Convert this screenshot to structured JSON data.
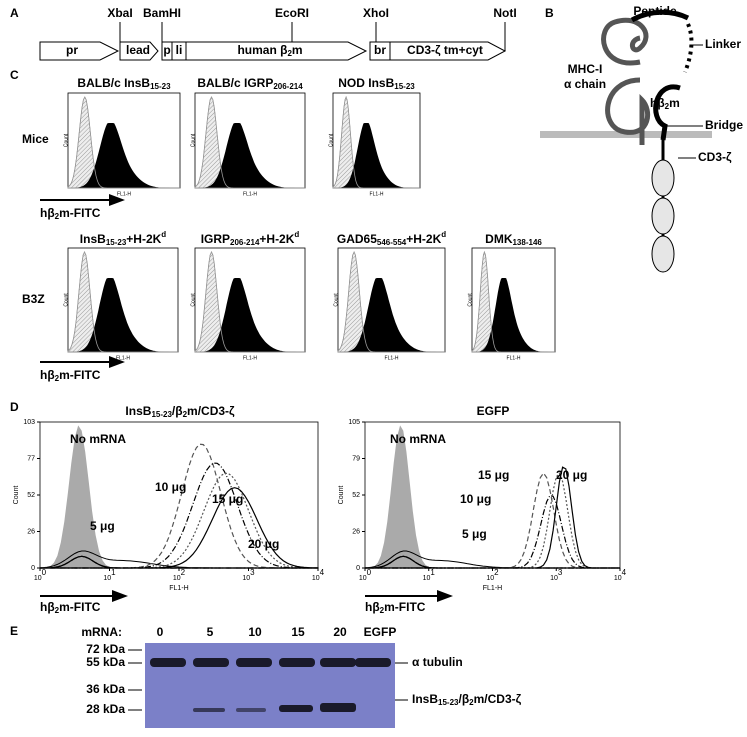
{
  "panel_a": {
    "letter": "A",
    "sites": [
      "XbaI",
      "BamHI",
      "EcoRI",
      "XhoI",
      "NotI"
    ],
    "boxes": {
      "pr": "pr",
      "lead": "lead",
      "p": "p",
      "li": "li",
      "b2m": [
        "human β",
        {
          "sub": "2"
        },
        "m"
      ],
      "br": "br",
      "cd3": "CD3-ζ tm+cyt"
    }
  },
  "panel_b": {
    "letter": "B",
    "peptide": "Peptide",
    "linker": "Linker",
    "mhc": [
      "MHC-I",
      "α chain"
    ],
    "b2m": [
      "hβ",
      {
        "sub": "2"
      },
      "m"
    ],
    "bridge": "Bridge",
    "cd3": "CD3-ζ"
  },
  "panel_c": {
    "letter": "C",
    "y_label": "Count",
    "x_label": "FL1-H",
    "rows": [
      {
        "label": "Mice",
        "x_axis": [
          "hβ",
          {
            "sub": "2"
          },
          "m-FITC"
        ],
        "plots": [
          [
            "BALB/c InsB",
            {
              "sub": "15-23"
            }
          ],
          [
            "BALB/c IGRP",
            {
              "sub": "206-214"
            }
          ],
          [
            "NOD InsB",
            {
              "sub": "15-23"
            }
          ]
        ]
      },
      {
        "label": "B3Z",
        "x_axis": [
          "hβ",
          {
            "sub": "2"
          },
          "m-FITC"
        ],
        "plots": [
          [
            "InsB",
            {
              "sub": "15-23"
            },
            "+H-2K",
            {
              "sup": "d"
            }
          ],
          [
            "IGRP",
            {
              "sub": "206-214"
            },
            "+H-2K",
            {
              "sup": "d"
            }
          ],
          [
            "GAD65",
            {
              "sub": "546-554"
            },
            "+H-2K",
            {
              "sup": "d"
            }
          ],
          [
            "DMK",
            {
              "sub": "138-146"
            }
          ]
        ]
      }
    ]
  },
  "panel_d": {
    "letter": "D",
    "y_label": "Count",
    "x_label": "FL1-H",
    "x_axis": [
      "hβ",
      {
        "sub": "2"
      },
      "m-FITC"
    ],
    "xticks": [
      [
        "10",
        {
          "sup": "0"
        }
      ],
      [
        "10",
        {
          "sup": "1"
        }
      ],
      [
        "10",
        {
          "sup": "2"
        }
      ],
      [
        "10",
        {
          "sup": "3"
        }
      ],
      [
        "10",
        {
          "sup": "4"
        }
      ]
    ],
    "plots": [
      {
        "title": [
          "InsB",
          {
            "sub": "15-23"
          },
          "/β",
          {
            "sub": "2"
          },
          "m/CD3-ζ"
        ],
        "yticks": [
          "103",
          "77",
          "52",
          "26",
          "0"
        ],
        "labels": {
          "none": "No mRNA",
          "5": "5 μg",
          "10": "10 μg",
          "15": "15 μg",
          "20": "20 μg"
        }
      },
      {
        "title": "EGFP",
        "yticks": [
          "105",
          "79",
          "52",
          "26",
          "0"
        ],
        "labels": {
          "none": "No mRNA",
          "5": "5 μg",
          "10": "10 μg",
          "15": "15 μg",
          "20": "20 μg"
        }
      }
    ]
  },
  "panel_e": {
    "letter": "E",
    "lane_title": "mRNA:",
    "lanes": [
      "0",
      "5",
      "10",
      "15",
      "20",
      "EGFP"
    ],
    "markers": [
      "72 kDa",
      "55 kDa",
      "36 kDa",
      "28 kDa"
    ],
    "tubulin": "α tubulin",
    "fusion": [
      "InsB",
      {
        "sub": "15-23"
      },
      "/β",
      {
        "sub": "2"
      },
      "m/CD3-ζ"
    ]
  }
}
